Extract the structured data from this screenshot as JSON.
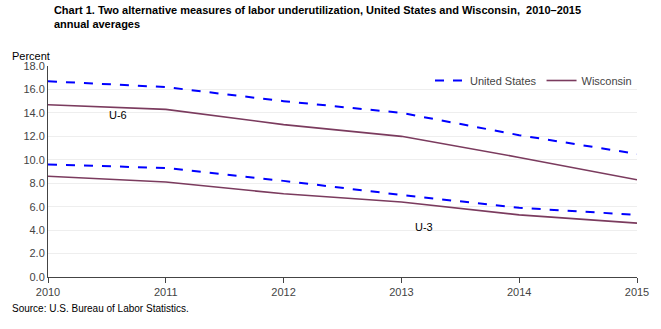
{
  "chart_data": {
    "type": "line",
    "title": "Chart 1. Two alternative measures of labor underutilization, United States and Wisconsin,  2010–2015",
    "subtitle": "annual averages",
    "ylabel": "Percent",
    "source": "Source: U.S. Bureau of Labor Statistics.",
    "x": [
      2010,
      2011,
      2012,
      2013,
      2014,
      2015
    ],
    "series": [
      {
        "name": "United States",
        "color": "#0000FF",
        "line_style": "dashed",
        "values": [
          16.7,
          16.2,
          15.0,
          14.0,
          12.1,
          10.5
        ]
      },
      {
        "name": "Wisconsin",
        "color": "#7B3B5E",
        "line_style": "solid",
        "values": [
          14.7,
          14.3,
          13.0,
          12.0,
          10.2,
          8.3
        ]
      },
      {
        "name": "United States",
        "color": "#0000FF",
        "line_style": "dashed",
        "values": [
          9.6,
          9.3,
          8.2,
          7.0,
          5.9,
          5.3
        ]
      },
      {
        "name": "Wisconsin",
        "color": "#7B3B5E",
        "line_style": "solid",
        "values": [
          8.6,
          8.1,
          7.1,
          6.4,
          5.3,
          4.6
        ]
      }
    ],
    "xlim": [
      2010,
      2015
    ],
    "xticks": [
      2010,
      2011,
      2012,
      2013,
      2014,
      2015
    ],
    "ylim": [
      0.0,
      18.0
    ],
    "yticks": [
      {
        "value": 0.0,
        "label": "0.0"
      },
      {
        "value": 2.0,
        "label": "2.0"
      },
      {
        "value": 4.0,
        "label": "4.0"
      },
      {
        "value": 6.0,
        "label": "6.0"
      },
      {
        "value": 8.0,
        "label": "8.0"
      },
      {
        "value": 10.0,
        "label": "10.0"
      },
      {
        "value": 12.0,
        "label": "12.0"
      },
      {
        "value": 14.0,
        "label": "14.0"
      },
      {
        "value": 16.0,
        "label": "16.0"
      },
      {
        "value": 18.0,
        "label": "18.0"
      }
    ],
    "annotations": [
      {
        "text": "U-6",
        "x": 2010.5,
        "y": 13.1
      },
      {
        "text": "U-3",
        "x": 2013.1,
        "y": 3.55
      }
    ],
    "grid": true,
    "legend": "upper right"
  }
}
